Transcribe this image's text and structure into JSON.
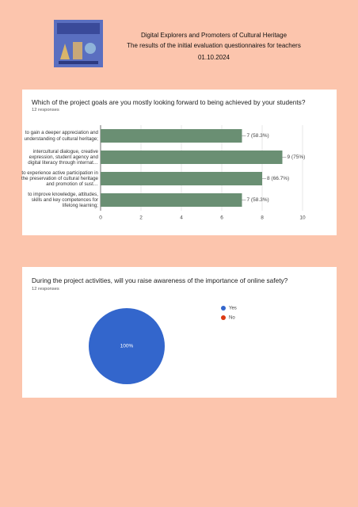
{
  "header": {
    "title": "Digital Explorers and Promoters of Cultural Heritage",
    "subtitle": "The results of the initial evaluation questionnaires for teachers",
    "date": "01.10.2024"
  },
  "chart_data": [
    {
      "type": "bar",
      "orientation": "horizontal",
      "title": "Which of the project goals are you mostly looking forward to being achieved by your students?",
      "subtitle": "12 responses",
      "categories": [
        "to gain a deeper appreciation and understanding of cultural heritage;",
        "intercultural dialogue, creative expression, student agency and digital literacy through internat…",
        "to experience active participation in the preservation of cultural heritage and promotion of sust…",
        "to improve knowledge, attitudes, skills and key competences for lifelong learning;"
      ],
      "values": [
        7,
        9,
        8,
        7
      ],
      "value_labels": [
        "7 (58.3%)",
        "9 (75%)",
        "8 (66.7%)",
        "7 (58.3%)"
      ],
      "color": "#6a8f73",
      "xlim": [
        0,
        10
      ],
      "xticks": [
        0,
        2,
        4,
        6,
        8,
        10
      ],
      "grid": true
    },
    {
      "type": "pie",
      "title": "During the project activities, will you raise awareness of the importance of online safety?",
      "subtitle": "12 responses",
      "categories": [
        "Yes",
        "No"
      ],
      "values": [
        100,
        0
      ],
      "value_labels": [
        "100%",
        null
      ],
      "colors": [
        "#3366cc",
        "#dc3912"
      ],
      "legend": "right"
    }
  ]
}
